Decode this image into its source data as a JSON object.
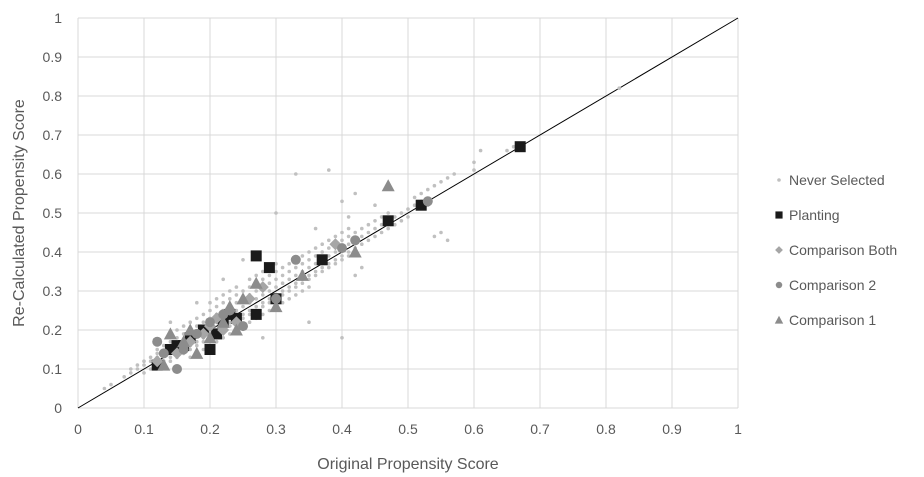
{
  "chart_data": {
    "type": "scatter",
    "xlabel": "Original Propensity Score",
    "ylabel": "Re-Calculated Propensity Score",
    "xlim": [
      0,
      1
    ],
    "ylim": [
      0,
      1
    ],
    "xticks": [
      "0",
      "0.1",
      "0.2",
      "0.3",
      "0.4",
      "0.5",
      "0.6",
      "0.7",
      "0.8",
      "0.9",
      "1"
    ],
    "yticks": [
      "0",
      "0.1",
      "0.2",
      "0.3",
      "0.4",
      "0.5",
      "0.6",
      "0.7",
      "0.8",
      "0.9",
      "1"
    ],
    "grid": true,
    "legend_position": "right",
    "reference_line": {
      "x": [
        0,
        1
      ],
      "y": [
        0,
        1
      ],
      "color": "#000000"
    },
    "series": [
      {
        "name": "Never Selected",
        "marker": "small-dot",
        "color": "#c0c0c0",
        "points": [
          [
            0.04,
            0.05
          ],
          [
            0.05,
            0.06
          ],
          [
            0.07,
            0.08
          ],
          [
            0.08,
            0.1
          ],
          [
            0.08,
            0.09
          ],
          [
            0.09,
            0.11
          ],
          [
            0.09,
            0.1
          ],
          [
            0.1,
            0.12
          ],
          [
            0.1,
            0.09
          ],
          [
            0.1,
            0.11
          ],
          [
            0.11,
            0.13
          ],
          [
            0.11,
            0.1
          ],
          [
            0.11,
            0.12
          ],
          [
            0.12,
            0.14
          ],
          [
            0.12,
            0.11
          ],
          [
            0.12,
            0.13
          ],
          [
            0.12,
            0.15
          ],
          [
            0.13,
            0.12
          ],
          [
            0.13,
            0.14
          ],
          [
            0.13,
            0.16
          ],
          [
            0.13,
            0.11
          ],
          [
            0.14,
            0.15
          ],
          [
            0.14,
            0.13
          ],
          [
            0.14,
            0.17
          ],
          [
            0.14,
            0.12
          ],
          [
            0.15,
            0.16
          ],
          [
            0.15,
            0.14
          ],
          [
            0.15,
            0.18
          ],
          [
            0.15,
            0.13
          ],
          [
            0.15,
            0.2
          ],
          [
            0.16,
            0.17
          ],
          [
            0.16,
            0.15
          ],
          [
            0.16,
            0.19
          ],
          [
            0.16,
            0.14
          ],
          [
            0.16,
            0.21
          ],
          [
            0.17,
            0.18
          ],
          [
            0.17,
            0.16
          ],
          [
            0.17,
            0.2
          ],
          [
            0.17,
            0.15
          ],
          [
            0.17,
            0.22
          ],
          [
            0.17,
            0.13
          ],
          [
            0.18,
            0.19
          ],
          [
            0.18,
            0.17
          ],
          [
            0.18,
            0.21
          ],
          [
            0.18,
            0.16
          ],
          [
            0.18,
            0.23
          ],
          [
            0.18,
            0.14
          ],
          [
            0.19,
            0.2
          ],
          [
            0.19,
            0.18
          ],
          [
            0.19,
            0.22
          ],
          [
            0.19,
            0.17
          ],
          [
            0.19,
            0.24
          ],
          [
            0.19,
            0.15
          ],
          [
            0.2,
            0.21
          ],
          [
            0.2,
            0.19
          ],
          [
            0.2,
            0.23
          ],
          [
            0.2,
            0.18
          ],
          [
            0.2,
            0.25
          ],
          [
            0.2,
            0.16
          ],
          [
            0.2,
            0.27
          ],
          [
            0.21,
            0.22
          ],
          [
            0.21,
            0.2
          ],
          [
            0.21,
            0.24
          ],
          [
            0.21,
            0.19
          ],
          [
            0.21,
            0.26
          ],
          [
            0.21,
            0.17
          ],
          [
            0.21,
            0.28
          ],
          [
            0.22,
            0.23
          ],
          [
            0.22,
            0.21
          ],
          [
            0.22,
            0.25
          ],
          [
            0.22,
            0.2
          ],
          [
            0.22,
            0.27
          ],
          [
            0.22,
            0.18
          ],
          [
            0.22,
            0.29
          ],
          [
            0.23,
            0.24
          ],
          [
            0.23,
            0.22
          ],
          [
            0.23,
            0.26
          ],
          [
            0.23,
            0.21
          ],
          [
            0.23,
            0.28
          ],
          [
            0.23,
            0.19
          ],
          [
            0.23,
            0.3
          ],
          [
            0.24,
            0.25
          ],
          [
            0.24,
            0.23
          ],
          [
            0.24,
            0.27
          ],
          [
            0.24,
            0.22
          ],
          [
            0.24,
            0.29
          ],
          [
            0.24,
            0.2
          ],
          [
            0.24,
            0.31
          ],
          [
            0.25,
            0.26
          ],
          [
            0.25,
            0.24
          ],
          [
            0.25,
            0.28
          ],
          [
            0.25,
            0.23
          ],
          [
            0.25,
            0.3
          ],
          [
            0.25,
            0.21
          ],
          [
            0.26,
            0.27
          ],
          [
            0.26,
            0.25
          ],
          [
            0.26,
            0.29
          ],
          [
            0.26,
            0.24
          ],
          [
            0.26,
            0.31
          ],
          [
            0.26,
            0.22
          ],
          [
            0.26,
            0.33
          ],
          [
            0.27,
            0.28
          ],
          [
            0.27,
            0.26
          ],
          [
            0.27,
            0.3
          ],
          [
            0.27,
            0.25
          ],
          [
            0.27,
            0.32
          ],
          [
            0.27,
            0.23
          ],
          [
            0.27,
            0.34
          ],
          [
            0.28,
            0.29
          ],
          [
            0.28,
            0.27
          ],
          [
            0.28,
            0.31
          ],
          [
            0.28,
            0.26
          ],
          [
            0.28,
            0.33
          ],
          [
            0.28,
            0.24
          ],
          [
            0.28,
            0.35
          ],
          [
            0.29,
            0.3
          ],
          [
            0.29,
            0.28
          ],
          [
            0.29,
            0.32
          ],
          [
            0.29,
            0.27
          ],
          [
            0.29,
            0.34
          ],
          [
            0.29,
            0.25
          ],
          [
            0.3,
            0.31
          ],
          [
            0.3,
            0.29
          ],
          [
            0.3,
            0.33
          ],
          [
            0.3,
            0.28
          ],
          [
            0.3,
            0.35
          ],
          [
            0.3,
            0.26
          ],
          [
            0.3,
            0.37
          ],
          [
            0.31,
            0.32
          ],
          [
            0.31,
            0.3
          ],
          [
            0.31,
            0.34
          ],
          [
            0.31,
            0.29
          ],
          [
            0.31,
            0.36
          ],
          [
            0.31,
            0.27
          ],
          [
            0.32,
            0.33
          ],
          [
            0.32,
            0.31
          ],
          [
            0.32,
            0.35
          ],
          [
            0.32,
            0.3
          ],
          [
            0.32,
            0.37
          ],
          [
            0.32,
            0.28
          ],
          [
            0.33,
            0.34
          ],
          [
            0.33,
            0.32
          ],
          [
            0.33,
            0.36
          ],
          [
            0.33,
            0.31
          ],
          [
            0.33,
            0.38
          ],
          [
            0.33,
            0.29
          ],
          [
            0.34,
            0.35
          ],
          [
            0.34,
            0.33
          ],
          [
            0.34,
            0.37
          ],
          [
            0.34,
            0.32
          ],
          [
            0.34,
            0.39
          ],
          [
            0.34,
            0.3
          ],
          [
            0.35,
            0.36
          ],
          [
            0.35,
            0.34
          ],
          [
            0.35,
            0.38
          ],
          [
            0.35,
            0.33
          ],
          [
            0.35,
            0.4
          ],
          [
            0.35,
            0.31
          ],
          [
            0.36,
            0.37
          ],
          [
            0.36,
            0.35
          ],
          [
            0.36,
            0.39
          ],
          [
            0.36,
            0.34
          ],
          [
            0.36,
            0.41
          ],
          [
            0.37,
            0.38
          ],
          [
            0.37,
            0.36
          ],
          [
            0.37,
            0.4
          ],
          [
            0.37,
            0.35
          ],
          [
            0.37,
            0.42
          ],
          [
            0.38,
            0.39
          ],
          [
            0.38,
            0.37
          ],
          [
            0.38,
            0.41
          ],
          [
            0.38,
            0.36
          ],
          [
            0.38,
            0.43
          ],
          [
            0.39,
            0.4
          ],
          [
            0.39,
            0.38
          ],
          [
            0.39,
            0.42
          ],
          [
            0.39,
            0.37
          ],
          [
            0.39,
            0.44
          ],
          [
            0.4,
            0.41
          ],
          [
            0.4,
            0.39
          ],
          [
            0.4,
            0.43
          ],
          [
            0.4,
            0.38
          ],
          [
            0.4,
            0.45
          ],
          [
            0.41,
            0.42
          ],
          [
            0.41,
            0.4
          ],
          [
            0.41,
            0.44
          ],
          [
            0.41,
            0.39
          ],
          [
            0.41,
            0.46
          ],
          [
            0.42,
            0.43
          ],
          [
            0.42,
            0.41
          ],
          [
            0.42,
            0.45
          ],
          [
            0.42,
            0.34
          ],
          [
            0.43,
            0.44
          ],
          [
            0.43,
            0.42
          ],
          [
            0.43,
            0.46
          ],
          [
            0.44,
            0.45
          ],
          [
            0.44,
            0.43
          ],
          [
            0.44,
            0.47
          ],
          [
            0.45,
            0.46
          ],
          [
            0.45,
            0.44
          ],
          [
            0.45,
            0.48
          ],
          [
            0.46,
            0.47
          ],
          [
            0.46,
            0.45
          ],
          [
            0.46,
            0.49
          ],
          [
            0.47,
            0.48
          ],
          [
            0.47,
            0.46
          ],
          [
            0.47,
            0.5
          ],
          [
            0.48,
            0.49
          ],
          [
            0.48,
            0.47
          ],
          [
            0.49,
            0.5
          ],
          [
            0.49,
            0.48
          ],
          [
            0.5,
            0.51
          ],
          [
            0.5,
            0.49
          ],
          [
            0.51,
            0.52
          ],
          [
            0.51,
            0.54
          ],
          [
            0.52,
            0.53
          ],
          [
            0.52,
            0.55
          ],
          [
            0.53,
            0.56
          ],
          [
            0.53,
            0.52
          ],
          [
            0.54,
            0.57
          ],
          [
            0.54,
            0.44
          ],
          [
            0.55,
            0.58
          ],
          [
            0.55,
            0.45
          ],
          [
            0.56,
            0.59
          ],
          [
            0.56,
            0.43
          ],
          [
            0.57,
            0.6
          ],
          [
            0.6,
            0.63
          ],
          [
            0.61,
            0.66
          ],
          [
            0.6,
            0.61
          ],
          [
            0.38,
            0.61
          ],
          [
            0.4,
            0.18
          ],
          [
            0.3,
            0.5
          ],
          [
            0.35,
            0.22
          ],
          [
            0.33,
            0.6
          ],
          [
            0.42,
            0.55
          ],
          [
            0.45,
            0.52
          ],
          [
            0.28,
            0.18
          ],
          [
            0.25,
            0.38
          ],
          [
            0.36,
            0.46
          ],
          [
            0.41,
            0.49
          ],
          [
            0.4,
            0.53
          ],
          [
            0.43,
            0.36
          ],
          [
            0.18,
            0.27
          ],
          [
            0.14,
            0.22
          ],
          [
            0.22,
            0.33
          ],
          [
            0.82,
            0.82
          ],
          [
            0.65,
            0.66
          ],
          [
            0.66,
            0.67
          ]
        ]
      },
      {
        "name": "Planting",
        "marker": "square",
        "color": "#1a1a1a",
        "points": [
          [
            0.12,
            0.11
          ],
          [
            0.14,
            0.15
          ],
          [
            0.15,
            0.16
          ],
          [
            0.16,
            0.16
          ],
          [
            0.17,
            0.18
          ],
          [
            0.19,
            0.2
          ],
          [
            0.2,
            0.15
          ],
          [
            0.21,
            0.19
          ],
          [
            0.22,
            0.22
          ],
          [
            0.23,
            0.24
          ],
          [
            0.24,
            0.23
          ],
          [
            0.27,
            0.24
          ],
          [
            0.27,
            0.39
          ],
          [
            0.29,
            0.36
          ],
          [
            0.3,
            0.28
          ],
          [
            0.37,
            0.38
          ],
          [
            0.47,
            0.48
          ],
          [
            0.52,
            0.52
          ],
          [
            0.67,
            0.67
          ]
        ]
      },
      {
        "name": "Comparison Both",
        "marker": "diamond",
        "color": "#a6a6a6",
        "points": [
          [
            0.12,
            0.12
          ],
          [
            0.15,
            0.14
          ],
          [
            0.17,
            0.17
          ],
          [
            0.19,
            0.19
          ],
          [
            0.2,
            0.21
          ],
          [
            0.21,
            0.23
          ],
          [
            0.22,
            0.2
          ],
          [
            0.24,
            0.22
          ],
          [
            0.26,
            0.28
          ],
          [
            0.28,
            0.31
          ],
          [
            0.39,
            0.42
          ]
        ]
      },
      {
        "name": "Comparison 2",
        "marker": "circle",
        "color": "#8c8c8c",
        "points": [
          [
            0.12,
            0.17
          ],
          [
            0.13,
            0.14
          ],
          [
            0.15,
            0.1
          ],
          [
            0.16,
            0.15
          ],
          [
            0.18,
            0.19
          ],
          [
            0.2,
            0.22
          ],
          [
            0.22,
            0.24
          ],
          [
            0.23,
            0.25
          ],
          [
            0.25,
            0.21
          ],
          [
            0.3,
            0.28
          ],
          [
            0.33,
            0.38
          ],
          [
            0.4,
            0.41
          ],
          [
            0.42,
            0.43
          ],
          [
            0.53,
            0.53
          ]
        ]
      },
      {
        "name": "Comparison 1",
        "marker": "triangle",
        "color": "#8c8c8c",
        "points": [
          [
            0.13,
            0.11
          ],
          [
            0.14,
            0.19
          ],
          [
            0.16,
            0.17
          ],
          [
            0.17,
            0.2
          ],
          [
            0.18,
            0.14
          ],
          [
            0.2,
            0.18
          ],
          [
            0.22,
            0.22
          ],
          [
            0.23,
            0.26
          ],
          [
            0.24,
            0.2
          ],
          [
            0.25,
            0.28
          ],
          [
            0.27,
            0.32
          ],
          [
            0.3,
            0.26
          ],
          [
            0.34,
            0.34
          ],
          [
            0.42,
            0.4
          ],
          [
            0.47,
            0.57
          ]
        ]
      }
    ]
  }
}
